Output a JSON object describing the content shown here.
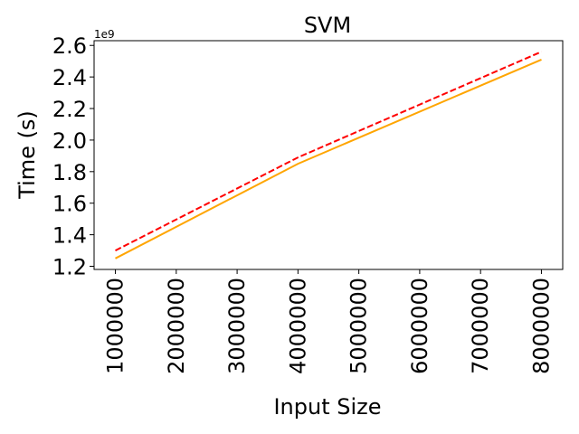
{
  "chart_data": {
    "type": "line",
    "title": "SVM",
    "xlabel": "Input Size",
    "ylabel": "Time (s)",
    "y_offset_label": "1e9",
    "x": [
      1000000,
      4000000,
      8000000
    ],
    "x_ticks": [
      "1000000",
      "2000000",
      "3000000",
      "4000000",
      "5000000",
      "6000000",
      "7000000",
      "8000000"
    ],
    "y_ticks": [
      "1.2",
      "1.4",
      "1.6",
      "1.8",
      "2.0",
      "2.2",
      "2.4",
      "2.6"
    ],
    "xlim": [
      650000,
      8350000
    ],
    "ylim": [
      1.18,
      2.63
    ],
    "grid": false,
    "series": [
      {
        "values": [
          1.3,
          1.89,
          2.56
        ],
        "color": "#ff0000",
        "style": "dashed"
      },
      {
        "values": [
          1.25,
          1.85,
          2.51
        ],
        "color": "#ffa500",
        "style": "solid"
      }
    ]
  }
}
